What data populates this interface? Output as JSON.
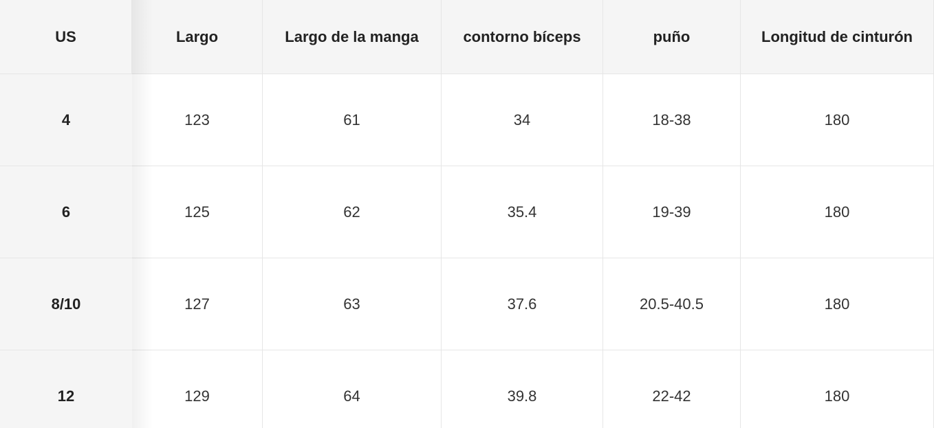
{
  "table": {
    "header": [
      "US",
      "Largo",
      "Largo de la manga",
      "contorno bíceps",
      "puño",
      "Longitud de cinturón"
    ],
    "rows": [
      [
        "4",
        "123",
        "61",
        "34",
        "18-38",
        "180"
      ],
      [
        "6",
        "125",
        "62",
        "35.4",
        "19-39",
        "180"
      ],
      [
        "8/10",
        "127",
        "63",
        "37.6",
        "20.5-40.5",
        "180"
      ],
      [
        "12",
        "129",
        "64",
        "39.8",
        "22-42",
        "180"
      ]
    ]
  }
}
